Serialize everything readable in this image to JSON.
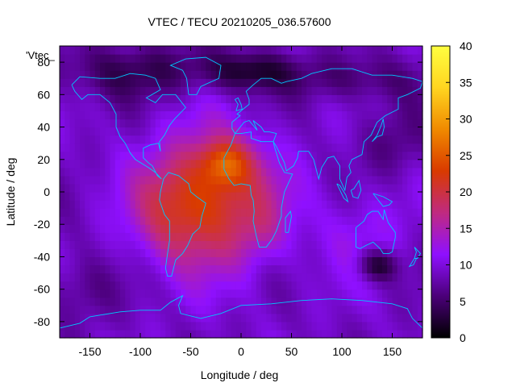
{
  "chart_data": {
    "type": "heatmap",
    "title": "VTEC / TECU 20210205_036.57600",
    "xlabel": "Longitude / deg",
    "ylabel": "Latitude / deg",
    "series_label": "'Vtec_",
    "xlim": [
      -180,
      180
    ],
    "ylim": [
      -90,
      90
    ],
    "x_ticks": [
      -150,
      -100,
      -50,
      0,
      50,
      100,
      150
    ],
    "y_ticks": [
      -80,
      -60,
      -40,
      -20,
      0,
      20,
      40,
      60,
      80
    ],
    "colorbar": {
      "range": [
        0,
        40
      ],
      "ticks": [
        0,
        5,
        10,
        15,
        20,
        25,
        30,
        35,
        40
      ]
    },
    "colormap": [
      "#000000",
      "#4b0079",
      "#8f10ff",
      "#c02a80",
      "#d93a00",
      "#f08a00",
      "#ffd520",
      "#ffff40"
    ],
    "coastline_color": "#00c8ff",
    "grid": false,
    "background_level": 9,
    "features": [
      {
        "lon": -30,
        "lat": -5,
        "sig_lon": 45,
        "sig_lat": 28,
        "amp": 13
      },
      {
        "lon": -15,
        "lat": 18,
        "sig_lon": 18,
        "sig_lat": 10,
        "amp": 9
      },
      {
        "lon": -70,
        "lat": -12,
        "sig_lon": 25,
        "sig_lat": 20,
        "amp": 4
      },
      {
        "lon": 20,
        "lat": -25,
        "sig_lon": 15,
        "sig_lat": 12,
        "amp": 2
      },
      {
        "lon": 135,
        "lat": -45,
        "sig_lon": 14,
        "sig_lat": 7,
        "amp": -8
      },
      {
        "lon": -100,
        "lat": 75,
        "sig_lon": 60,
        "sig_lat": 12,
        "amp": -5
      },
      {
        "lon": 10,
        "lat": 75,
        "sig_lon": 30,
        "sig_lat": 8,
        "amp": -6
      },
      {
        "lon": 110,
        "lat": 70,
        "sig_lon": 50,
        "sig_lat": 10,
        "amp": -4
      },
      {
        "lon": 150,
        "lat": 30,
        "sig_lon": 25,
        "sig_lat": 15,
        "amp": -3
      },
      {
        "lon": 120,
        "lat": -25,
        "sig_lon": 30,
        "sig_lat": 20,
        "amp": 3
      },
      {
        "lon": -160,
        "lat": -60,
        "sig_lon": 25,
        "sig_lat": 15,
        "amp": -3
      }
    ]
  }
}
